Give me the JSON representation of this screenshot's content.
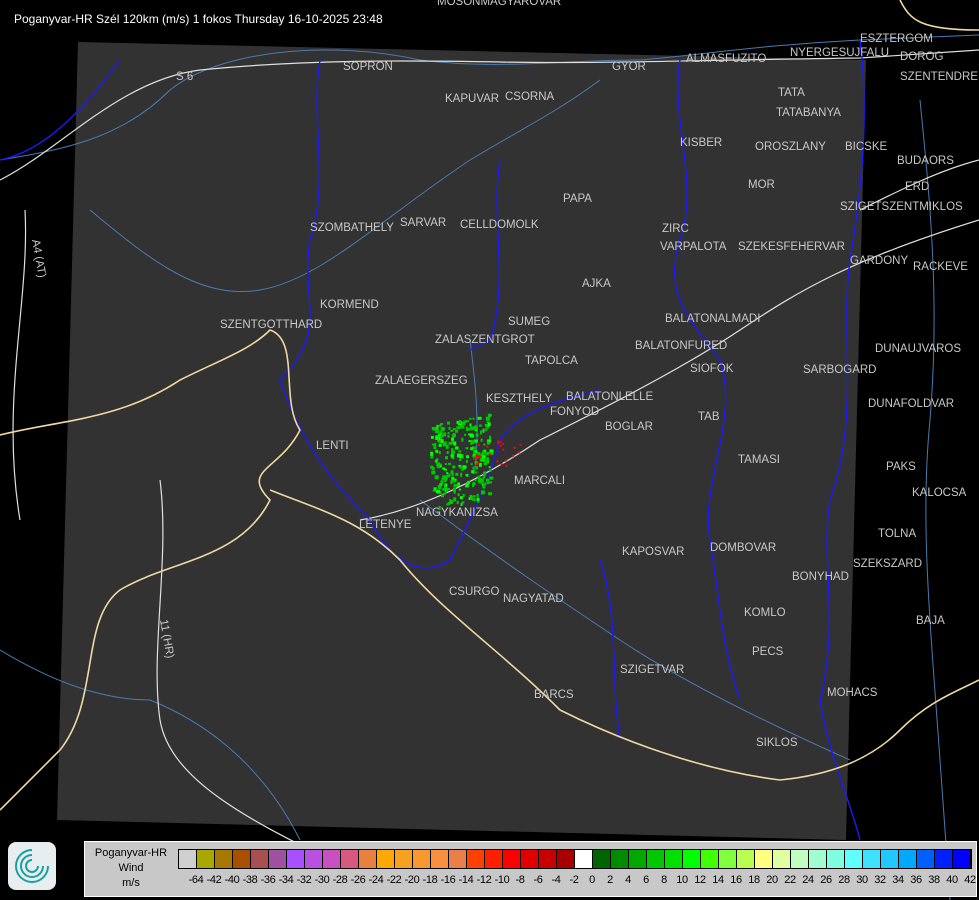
{
  "title": "Poganyvar-HR Szél 120km (m/s) 1 fokos Thursday 16-10-2025 23:48",
  "map": {
    "background": "#000000",
    "radar_area": "#323232",
    "border_color": "#1a1aff",
    "road_color": "#e0e0e0",
    "river_color": "#4a7ab0",
    "country_border_color": "#f0d8a0",
    "road_labels": [
      "S 6",
      "A4 (AT)",
      "11 (HR)"
    ],
    "cities": [
      "MOSONMAGYAROVAR",
      "SOPRON",
      "KAPUVAR",
      "CSORNA",
      "GYOR",
      "ALMASFUZITO",
      "TATA",
      "TATABANYA",
      "ESZTERGOM",
      "NYERGESUJFALU",
      "DOROG",
      "SZENTENDRE",
      "KISBER",
      "OROSZLANY",
      "BICSKE",
      "BUDAORS",
      "MOR",
      "ERD",
      "SZIGETSZENTMIKLOS",
      "PAPA",
      "ZIRC",
      "VARPALOTA",
      "SZEKESFEHERVAR",
      "GARDONY",
      "RACKEVE",
      "SZOMBATHELY",
      "SARVAR",
      "CELLDOMOLK",
      "AJKA",
      "KORMEND",
      "SZENTGOTTHARD",
      "BALATONALMADI",
      "ZALASZENTGROT",
      "SUMEG",
      "BALATONFURED",
      "SIOFOK",
      "TAPOLCA",
      "DUNAUJVAROS",
      "SARBOGARD",
      "ZALAEGERSZEG",
      "KESZTHELY",
      "BALATONLELLE",
      "FONYOD",
      "BOGLAR",
      "DUNAFOLDVAR",
      "TAB",
      "LENTI",
      "TAMASI",
      "PAKS",
      "MARCALI",
      "KALOCSA",
      "NAGYKANIZSA",
      "LETENYE",
      "TOLNA",
      "KAPOSVAR",
      "DOMBOVAR",
      "SZEKSZARD",
      "BONYHAD",
      "CSURGO",
      "NAGYATAD",
      "KOMLO",
      "BAJA",
      "PECS",
      "SZIGETVAR",
      "MOHACS",
      "BARCS",
      "SIKLOS"
    ]
  },
  "legend": {
    "station": "Poganyvar-HR",
    "quantity": "Wind",
    "unit": "m/s",
    "labels": [
      "-64",
      "-42",
      "-40",
      "-38",
      "-36",
      "-34",
      "-32",
      "-30",
      "-28",
      "-26",
      "-24",
      "-22",
      "-20",
      "-18",
      "-16",
      "-14",
      "-12",
      "-10",
      "-8",
      "-6",
      "-4",
      "-2",
      "0",
      "2",
      "4",
      "6",
      "8",
      "10",
      "12",
      "14",
      "16",
      "18",
      "20",
      "22",
      "24",
      "26",
      "28",
      "30",
      "32",
      "34",
      "36",
      "38",
      "40",
      "42"
    ],
    "colors": [
      "#d0d0d0",
      "#a8a800",
      "#a87800",
      "#a85000",
      "#a85050",
      "#a050a0",
      "#a850ff",
      "#b850e0",
      "#c850c0",
      "#d85880",
      "#e88040",
      "#ffa800",
      "#f8a020",
      "#f89830",
      "#f89040",
      "#e88048",
      "#ff4000",
      "#ff2000",
      "#ff0000",
      "#e00000",
      "#c80000",
      "#a80000",
      "#ffffff",
      "#006400",
      "#008c00",
      "#00a800",
      "#00c800",
      "#00e000",
      "#00ff00",
      "#40ff00",
      "#80ff40",
      "#b8ff50",
      "#ffff80",
      "#e0ffa0",
      "#c0ffc0",
      "#a0ffd0",
      "#80ffe0",
      "#60ffff",
      "#40e0ff",
      "#20c8ff",
      "#00a8ff",
      "#0060ff",
      "#0020ff",
      "#0000ff"
    ]
  }
}
